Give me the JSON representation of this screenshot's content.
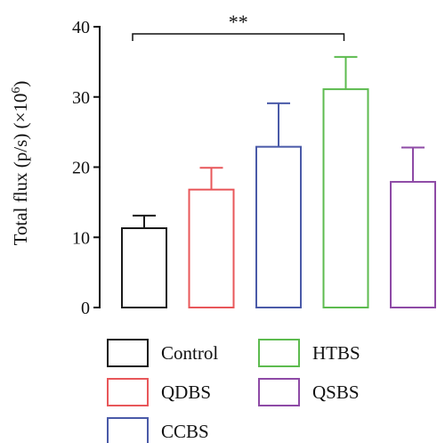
{
  "chart_data": {
    "type": "bar",
    "ylabel": "Total flux (p/s) (×10",
    "ylabel_exponent": "6",
    "ylabel_close": ")",
    "ylim": [
      0,
      40
    ],
    "yticks": [
      "0",
      "10",
      "20",
      "30",
      "40"
    ],
    "grid": false,
    "legend_position": "bottom",
    "categories": [
      "Control",
      "QDBS",
      "CCBS",
      "HTBS",
      "QSBS"
    ],
    "values": [
      11.3,
      16.8,
      22.9,
      31.1,
      17.9
    ],
    "errors": [
      1.8,
      3.1,
      6.2,
      4.6,
      4.9
    ],
    "colors": [
      "#1a1a1a",
      "#e8575a",
      "#4a5aa8",
      "#5dbb4f",
      "#8e4aa6"
    ],
    "significance": {
      "from": "Control",
      "to": "HTBS",
      "label": "**"
    }
  }
}
